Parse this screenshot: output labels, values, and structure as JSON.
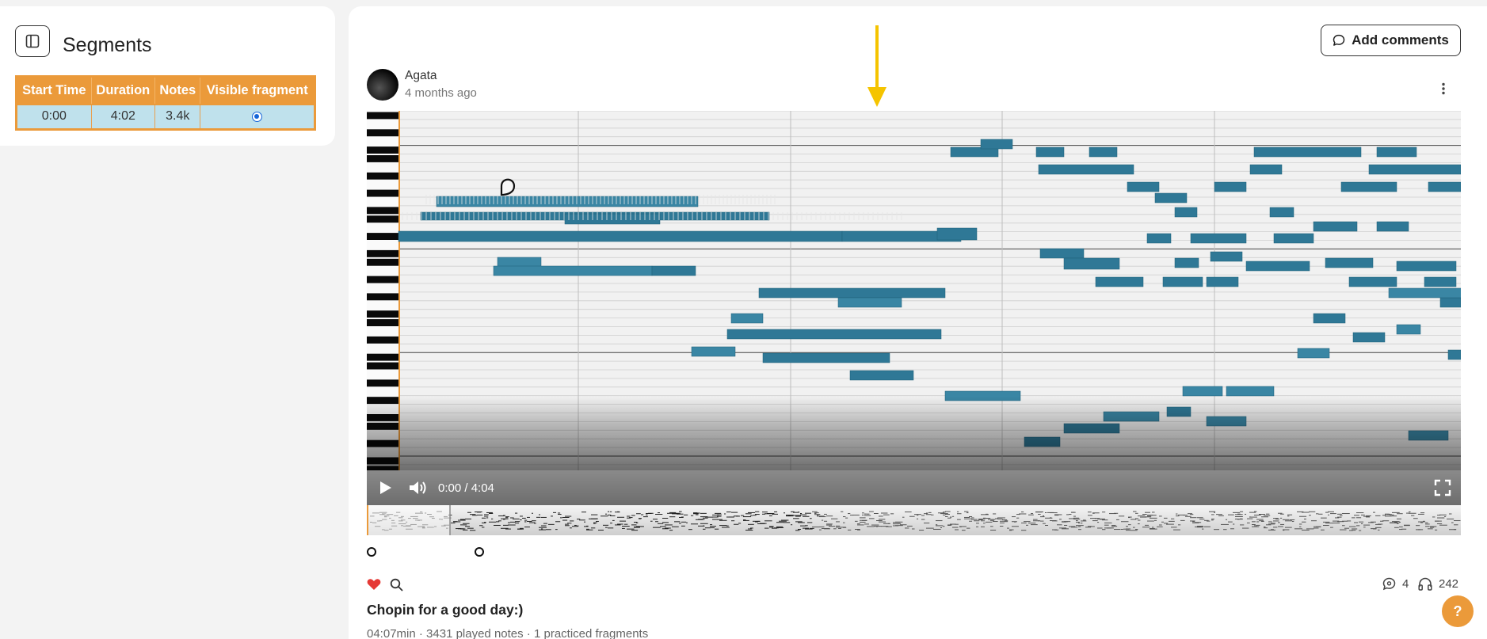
{
  "sidebar": {
    "title": "Segments",
    "toggle_icon": "sidebar-toggle-icon",
    "table": {
      "headers": [
        "Start Time",
        "Duration",
        "Notes",
        "Visible fragment"
      ],
      "rows": [
        {
          "start_time": "0:00",
          "duration": "4:02",
          "notes": "3.4k",
          "visible": true
        }
      ]
    }
  },
  "header": {
    "add_comments_label": "Add comments",
    "author": "Agata",
    "time_ago": "4 months ago"
  },
  "player": {
    "time": "0:00 / 4:04",
    "progress": 0
  },
  "stats": {
    "comments_count": "4",
    "listens_count": "242"
  },
  "song": {
    "title": "Chopin for a good day:)",
    "meta": "04:07min · 3431 played notes · 1 practiced fragments"
  },
  "help": {
    "label": "?"
  },
  "colors": {
    "accent": "#eb9a3a",
    "note": "#2f7896",
    "note_light": "#4a9ab4",
    "like": "#e53935",
    "arrow": "#f5c400"
  }
}
